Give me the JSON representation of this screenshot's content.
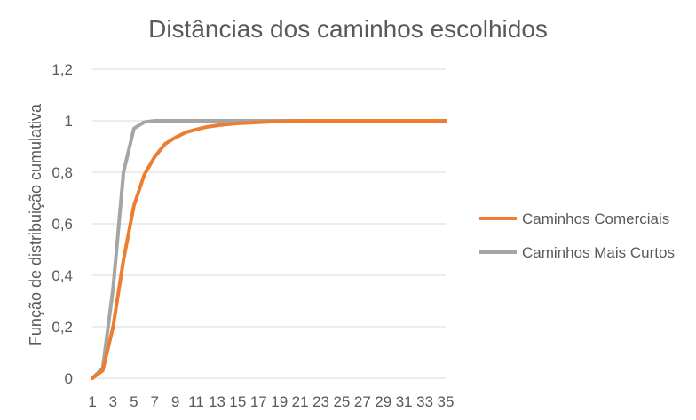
{
  "chart_data": {
    "type": "line",
    "title": "Distâncias dos caminhos escolhidos",
    "xlabel": "",
    "ylabel": "Função de distribuição cumulativa",
    "x": [
      1,
      2,
      3,
      4,
      5,
      6,
      7,
      8,
      9,
      10,
      11,
      12,
      13,
      14,
      15,
      16,
      17,
      18,
      19,
      20,
      21,
      22,
      23,
      24,
      25,
      26,
      27,
      28,
      29,
      30,
      31,
      32,
      33,
      34,
      35
    ],
    "x_tick_labels": [
      "1",
      "3",
      "5",
      "7",
      "9",
      "11",
      "13",
      "15",
      "17",
      "19",
      "21",
      "23",
      "25",
      "27",
      "29",
      "31",
      "33",
      "35"
    ],
    "ylim": [
      0,
      1.2
    ],
    "y_tick_labels": [
      "0",
      "0,2",
      "0,4",
      "0,6",
      "0,8",
      "1",
      "1,2"
    ],
    "grid": true,
    "legend_position": "right",
    "series": [
      {
        "name": "Caminhos Comerciais",
        "color": "#ed7d31",
        "values": [
          0,
          0.03,
          0.2,
          0.46,
          0.67,
          0.79,
          0.86,
          0.91,
          0.935,
          0.955,
          0.966,
          0.976,
          0.982,
          0.986,
          0.99,
          0.992,
          0.994,
          0.996,
          0.998,
          0.999,
          1,
          1,
          1,
          1,
          1,
          1,
          1,
          1,
          1,
          1,
          1,
          1,
          1,
          1,
          1
        ]
      },
      {
        "name": "Caminhos Mais Curtos",
        "color": "#a5a5a5",
        "values": [
          0,
          0.04,
          0.35,
          0.8,
          0.97,
          0.995,
          1,
          1,
          1,
          1,
          1,
          1,
          1,
          1,
          1,
          1,
          1,
          1,
          1,
          1,
          1,
          1,
          1,
          1,
          1,
          1,
          1,
          1,
          1,
          1,
          1,
          1,
          1,
          1,
          1
        ]
      }
    ]
  }
}
